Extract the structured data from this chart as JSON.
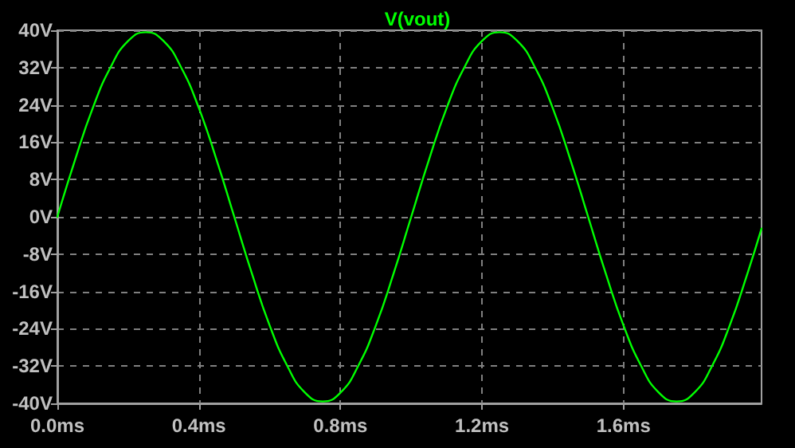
{
  "chart_data": {
    "type": "line",
    "title": "V(vout)",
    "x": [
      0,
      0.05,
      0.1,
      0.15,
      0.2,
      0.25,
      0.3,
      0.35,
      0.4,
      0.45,
      0.5,
      0.55,
      0.6,
      0.65,
      0.7,
      0.75,
      0.8,
      0.85,
      0.9,
      0.95,
      1,
      1.05,
      1.1,
      1.15,
      1.2,
      1.25,
      1.3,
      1.35,
      1.4,
      1.45,
      1.5,
      1.55,
      1.6,
      1.65,
      1.7,
      1.75,
      1.8,
      1.85,
      1.9,
      1.95,
      1.99
    ],
    "series": [
      {
        "color": "#00ff00",
        "values": [
          0,
          12.2,
          23.3,
          32,
          37.7,
          39.6,
          37.7,
          32,
          23.3,
          12.2,
          0,
          -12.2,
          -23.3,
          -32,
          -37.7,
          -39.6,
          -37.7,
          -32,
          -23.3,
          -12.2,
          0,
          12.2,
          23.3,
          32,
          37.7,
          39.6,
          37.7,
          32,
          23.3,
          12.2,
          0,
          -12.2,
          -23.3,
          -32,
          -37.7,
          -39.6,
          -37.7,
          -32,
          -23.3,
          -12.2,
          -2.5
        ]
      }
    ],
    "xlim": [
      0,
      1.99
    ],
    "xticks": [
      {
        "value": 0,
        "label": "0.0ms"
      },
      {
        "value": 0.4,
        "label": "0.4ms"
      },
      {
        "value": 0.8,
        "label": "0.8ms"
      },
      {
        "value": 1.2,
        "label": "1.2ms"
      },
      {
        "value": 1.6,
        "label": "1.6ms"
      }
    ],
    "ylim": [
      -40,
      40
    ],
    "yticks": [
      {
        "value": -40,
        "label": "-40V"
      },
      {
        "value": -32,
        "label": "-32V"
      },
      {
        "value": -24,
        "label": "-24V"
      },
      {
        "value": -16,
        "label": "-16V"
      },
      {
        "value": -8,
        "label": "-8V"
      },
      {
        "value": 0,
        "label": "0V"
      },
      {
        "value": 8,
        "label": "8V"
      },
      {
        "value": 16,
        "label": "16V"
      },
      {
        "value": 24,
        "label": "24V"
      },
      {
        "value": 32,
        "label": "32V"
      },
      {
        "value": 40,
        "label": "40V"
      }
    ],
    "grid": true,
    "marker": "none",
    "line_style": "solid"
  }
}
